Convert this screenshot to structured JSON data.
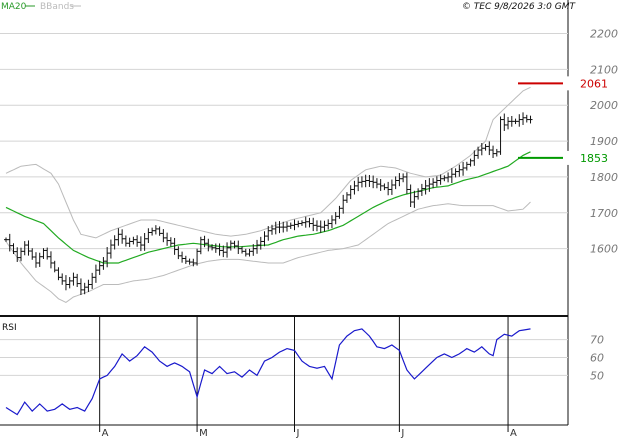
{
  "chart_data": {
    "type": "candlestick",
    "title": "",
    "copyright": "© TEC 9/8/2026 3:0 GMT",
    "legend": [
      {
        "label": "MA20",
        "color": "#2a9a2a"
      },
      {
        "label": "BBands",
        "color": "#bbbbbb"
      }
    ],
    "colors": {
      "price": "#111111",
      "ma20": "#22aa22",
      "bbands": "#bbbbbb",
      "rsi": "#1a1acc",
      "resistance": "#cc0000",
      "support": "#009900",
      "grid": "#d4d4d4"
    },
    "price_axis": {
      "ticks": [
        {
          "label": "2200",
          "value": 2200
        },
        {
          "label": "2100",
          "value": 2100
        },
        {
          "label": "2000",
          "value": 2000
        },
        {
          "label": "1900",
          "value": 1900
        },
        {
          "label": "1800",
          "value": 1800
        },
        {
          "label": "1700",
          "value": 1700
        },
        {
          "label": "1600",
          "value": 1600
        }
      ],
      "range": [
        1440,
        2260
      ]
    },
    "x_axis": {
      "count": 147,
      "months": [
        {
          "label": "A",
          "index": 25
        },
        {
          "label": "M",
          "index": 51
        },
        {
          "label": "J",
          "index": 77
        },
        {
          "label": "J",
          "index": 105
        },
        {
          "label": "A",
          "index": 134
        }
      ]
    },
    "levels": [
      {
        "label": "2061",
        "value": 2061,
        "type": "resistance"
      },
      {
        "label": "1853",
        "value": 1853,
        "type": "support"
      }
    ],
    "price_anchors": [
      [
        0,
        1625
      ],
      [
        3,
        1575
      ],
      [
        5,
        1610
      ],
      [
        8,
        1560
      ],
      [
        10,
        1595
      ],
      [
        12,
        1560
      ],
      [
        14,
        1520
      ],
      [
        16,
        1500
      ],
      [
        18,
        1520
      ],
      [
        20,
        1485
      ],
      [
        22,
        1500
      ],
      [
        24,
        1540
      ],
      [
        26,
        1565
      ],
      [
        28,
        1610
      ],
      [
        30,
        1640
      ],
      [
        32,
        1615
      ],
      [
        34,
        1625
      ],
      [
        36,
        1610
      ],
      [
        38,
        1645
      ],
      [
        40,
        1655
      ],
      [
        42,
        1630
      ],
      [
        44,
        1615
      ],
      [
        46,
        1580
      ],
      [
        48,
        1565
      ],
      [
        50,
        1560
      ],
      [
        52,
        1625
      ],
      [
        54,
        1605
      ],
      [
        56,
        1600
      ],
      [
        58,
        1590
      ],
      [
        60,
        1615
      ],
      [
        62,
        1600
      ],
      [
        64,
        1585
      ],
      [
        66,
        1600
      ],
      [
        68,
        1620
      ],
      [
        70,
        1650
      ],
      [
        72,
        1660
      ],
      [
        74,
        1660
      ],
      [
        76,
        1665
      ],
      [
        78,
        1670
      ],
      [
        80,
        1675
      ],
      [
        82,
        1665
      ],
      [
        84,
        1660
      ],
      [
        86,
        1670
      ],
      [
        88,
        1690
      ],
      [
        90,
        1735
      ],
      [
        92,
        1765
      ],
      [
        94,
        1785
      ],
      [
        96,
        1790
      ],
      [
        98,
        1785
      ],
      [
        100,
        1775
      ],
      [
        102,
        1765
      ],
      [
        104,
        1790
      ],
      [
        106,
        1800
      ],
      [
        108,
        1730
      ],
      [
        110,
        1760
      ],
      [
        112,
        1775
      ],
      [
        114,
        1785
      ],
      [
        116,
        1795
      ],
      [
        118,
        1800
      ],
      [
        120,
        1815
      ],
      [
        122,
        1825
      ],
      [
        124,
        1845
      ],
      [
        126,
        1875
      ],
      [
        128,
        1885
      ],
      [
        130,
        1865
      ],
      [
        131,
        1870
      ],
      [
        132,
        1960
      ],
      [
        133,
        1945
      ],
      [
        134,
        1955
      ],
      [
        136,
        1955
      ],
      [
        138,
        1965
      ],
      [
        139,
        1960
      ],
      [
        140,
        1960
      ]
    ],
    "ma20_anchors": [
      [
        0,
        1715
      ],
      [
        5,
        1690
      ],
      [
        10,
        1670
      ],
      [
        14,
        1630
      ],
      [
        18,
        1595
      ],
      [
        22,
        1575
      ],
      [
        26,
        1560
      ],
      [
        30,
        1560
      ],
      [
        34,
        1575
      ],
      [
        38,
        1590
      ],
      [
        42,
        1600
      ],
      [
        46,
        1610
      ],
      [
        50,
        1615
      ],
      [
        54,
        1610
      ],
      [
        58,
        1605
      ],
      [
        62,
        1605
      ],
      [
        66,
        1608
      ],
      [
        70,
        1610
      ],
      [
        74,
        1625
      ],
      [
        78,
        1635
      ],
      [
        82,
        1640
      ],
      [
        86,
        1650
      ],
      [
        90,
        1665
      ],
      [
        94,
        1690
      ],
      [
        98,
        1715
      ],
      [
        102,
        1735
      ],
      [
        106,
        1750
      ],
      [
        110,
        1760
      ],
      [
        114,
        1770
      ],
      [
        118,
        1775
      ],
      [
        122,
        1790
      ],
      [
        126,
        1800
      ],
      [
        130,
        1815
      ],
      [
        134,
        1830
      ],
      [
        138,
        1860
      ],
      [
        140,
        1870
      ]
    ],
    "bb_upper_anchors": [
      [
        0,
        1810
      ],
      [
        4,
        1830
      ],
      [
        8,
        1835
      ],
      [
        12,
        1810
      ],
      [
        14,
        1780
      ],
      [
        16,
        1730
      ],
      [
        18,
        1680
      ],
      [
        20,
        1640
      ],
      [
        24,
        1630
      ],
      [
        28,
        1650
      ],
      [
        32,
        1665
      ],
      [
        36,
        1680
      ],
      [
        40,
        1680
      ],
      [
        44,
        1670
      ],
      [
        48,
        1660
      ],
      [
        52,
        1650
      ],
      [
        56,
        1640
      ],
      [
        60,
        1635
      ],
      [
        64,
        1640
      ],
      [
        68,
        1650
      ],
      [
        72,
        1665
      ],
      [
        76,
        1680
      ],
      [
        80,
        1690
      ],
      [
        84,
        1700
      ],
      [
        88,
        1740
      ],
      [
        92,
        1790
      ],
      [
        96,
        1820
      ],
      [
        100,
        1830
      ],
      [
        104,
        1825
      ],
      [
        108,
        1810
      ],
      [
        112,
        1800
      ],
      [
        116,
        1805
      ],
      [
        120,
        1830
      ],
      [
        124,
        1860
      ],
      [
        128,
        1900
      ],
      [
        130,
        1960
      ],
      [
        134,
        2000
      ],
      [
        138,
        2040
      ],
      [
        140,
        2050
      ]
    ],
    "bb_lower_anchors": [
      [
        0,
        1620
      ],
      [
        4,
        1560
      ],
      [
        8,
        1510
      ],
      [
        12,
        1480
      ],
      [
        14,
        1460
      ],
      [
        16,
        1450
      ],
      [
        18,
        1465
      ],
      [
        22,
        1480
      ],
      [
        26,
        1500
      ],
      [
        30,
        1500
      ],
      [
        34,
        1510
      ],
      [
        38,
        1515
      ],
      [
        42,
        1525
      ],
      [
        46,
        1540
      ],
      [
        50,
        1555
      ],
      [
        54,
        1565
      ],
      [
        58,
        1570
      ],
      [
        62,
        1570
      ],
      [
        66,
        1565
      ],
      [
        70,
        1560
      ],
      [
        74,
        1560
      ],
      [
        78,
        1575
      ],
      [
        82,
        1585
      ],
      [
        86,
        1595
      ],
      [
        90,
        1600
      ],
      [
        94,
        1610
      ],
      [
        98,
        1640
      ],
      [
        102,
        1670
      ],
      [
        106,
        1690
      ],
      [
        110,
        1710
      ],
      [
        114,
        1720
      ],
      [
        118,
        1725
      ],
      [
        122,
        1720
      ],
      [
        126,
        1720
      ],
      [
        130,
        1720
      ],
      [
        134,
        1705
      ],
      [
        138,
        1710
      ],
      [
        140,
        1730
      ]
    ],
    "rsi": {
      "title": "RSI",
      "ticks": [
        {
          "label": "70",
          "value": 70
        },
        {
          "label": "60",
          "value": 60
        },
        {
          "label": "50",
          "value": 50
        }
      ],
      "range": [
        25,
        81
      ],
      "anchors": [
        [
          0,
          32
        ],
        [
          3,
          28
        ],
        [
          5,
          35
        ],
        [
          7,
          30
        ],
        [
          9,
          34
        ],
        [
          11,
          30
        ],
        [
          13,
          31
        ],
        [
          15,
          34
        ],
        [
          17,
          31
        ],
        [
          19,
          32
        ],
        [
          21,
          30
        ],
        [
          23,
          37
        ],
        [
          25,
          48
        ],
        [
          27,
          50
        ],
        [
          29,
          55
        ],
        [
          31,
          62
        ],
        [
          33,
          58
        ],
        [
          35,
          61
        ],
        [
          37,
          66
        ],
        [
          39,
          63
        ],
        [
          41,
          58
        ],
        [
          43,
          55
        ],
        [
          45,
          57
        ],
        [
          47,
          55
        ],
        [
          49,
          52
        ],
        [
          51,
          38
        ],
        [
          53,
          53
        ],
        [
          55,
          51
        ],
        [
          57,
          55
        ],
        [
          59,
          51
        ],
        [
          61,
          52
        ],
        [
          63,
          49
        ],
        [
          65,
          53
        ],
        [
          67,
          50
        ],
        [
          69,
          58
        ],
        [
          71,
          60
        ],
        [
          73,
          63
        ],
        [
          75,
          65
        ],
        [
          77,
          64
        ],
        [
          79,
          58
        ],
        [
          81,
          55
        ],
        [
          83,
          54
        ],
        [
          85,
          55
        ],
        [
          87,
          48
        ],
        [
          89,
          67
        ],
        [
          91,
          72
        ],
        [
          93,
          75
        ],
        [
          95,
          76
        ],
        [
          97,
          72
        ],
        [
          99,
          66
        ],
        [
          101,
          65
        ],
        [
          103,
          67
        ],
        [
          105,
          64
        ],
        [
          107,
          53
        ],
        [
          109,
          48
        ],
        [
          111,
          52
        ],
        [
          113,
          56
        ],
        [
          115,
          60
        ],
        [
          117,
          62
        ],
        [
          119,
          60
        ],
        [
          121,
          62
        ],
        [
          123,
          65
        ],
        [
          125,
          63
        ],
        [
          127,
          66
        ],
        [
          129,
          62
        ],
        [
          130,
          61
        ],
        [
          131,
          70
        ],
        [
          133,
          73
        ],
        [
          135,
          72
        ],
        [
          137,
          75
        ],
        [
          140,
          76
        ]
      ]
    }
  }
}
